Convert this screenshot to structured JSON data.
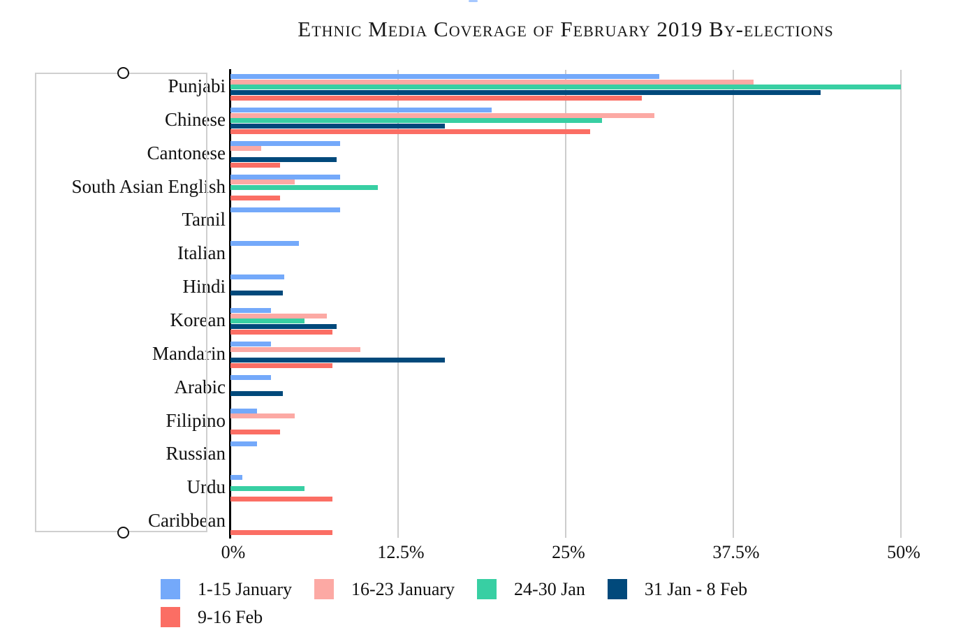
{
  "chart_data": {
    "type": "bar",
    "orientation": "horizontal",
    "title": "Ethnic Media Coverage of February 2019 By-elections",
    "categories": [
      "Punjabi",
      "Chinese",
      "Cantonese",
      "South Asian English",
      "Tamil",
      "Italian",
      "Hindi",
      "Korean",
      "Mandarin",
      "Arabic",
      "Filipino",
      "Russian",
      "Urdu",
      "Caribbean"
    ],
    "series": [
      {
        "name": "1-15 January",
        "color": "#74A9FA",
        "values": [
          32,
          19.5,
          8.2,
          8.2,
          8.2,
          5.1,
          4,
          3,
          3,
          3,
          2,
          2,
          0.9,
          0
        ]
      },
      {
        "name": "16-23 January",
        "color": "#FCA9A4",
        "values": [
          39,
          31.6,
          2.3,
          4.8,
          0,
          0,
          0,
          7.2,
          9.7,
          0,
          4.8,
          0,
          0,
          0
        ]
      },
      {
        "name": "24-30 Jan",
        "color": "#38CFA3",
        "values": [
          50,
          27.7,
          0,
          11,
          0,
          0,
          0,
          5.5,
          0,
          0,
          0,
          0,
          5.5,
          0
        ]
      },
      {
        "name": "31 Jan - 8 Feb",
        "color": "#01497B",
        "values": [
          44,
          16,
          7.9,
          0,
          0,
          0,
          3.9,
          7.9,
          16,
          3.9,
          0,
          0,
          0,
          0
        ]
      },
      {
        "name": "9-16 Feb",
        "color": "#FB6E64",
        "values": [
          30.7,
          26.8,
          3.7,
          3.7,
          0,
          0,
          0,
          7.6,
          7.6,
          0,
          3.7,
          0,
          7.6,
          7.6
        ]
      }
    ],
    "x_ticks": [
      "0%",
      "12.5%",
      "25%",
      "37.5%",
      "50%"
    ],
    "x_tick_values": [
      0,
      12.5,
      25,
      37.5,
      50
    ],
    "xlim": [
      0,
      50
    ],
    "grid": true,
    "legend_position": "bottom",
    "axis_color": "#000000",
    "gridline_color": "#cccccc"
  },
  "annotation_box": {
    "border_color": "#cfcfcf",
    "handle_color": "#111111"
  }
}
